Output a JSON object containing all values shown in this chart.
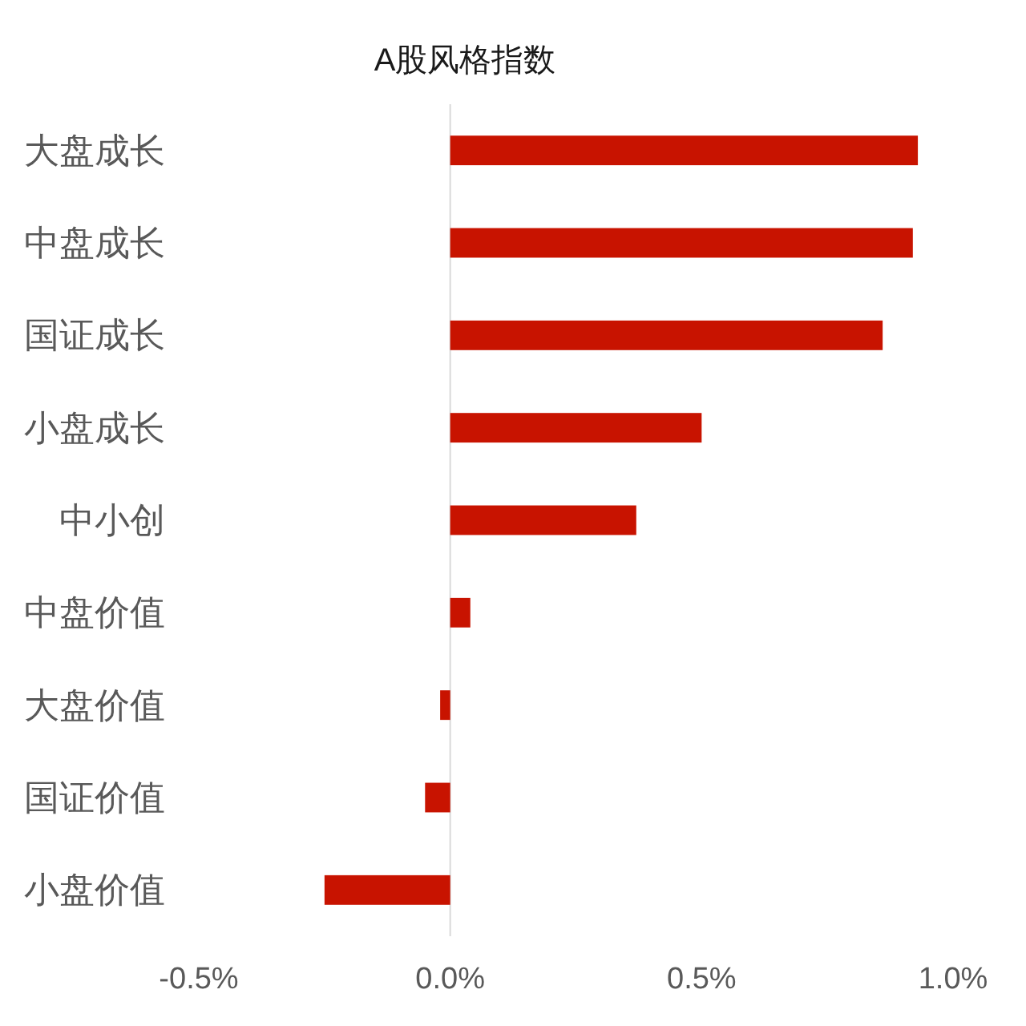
{
  "chart_data": {
    "type": "bar",
    "orientation": "horizontal",
    "title": "A股风格指数",
    "categories": [
      "大盘成长",
      "中盘成长",
      "国证成长",
      "小盘成长",
      "中小创",
      "中盘价值",
      "大盘价值",
      "国证价值",
      "小盘价值"
    ],
    "values": [
      0.93,
      0.92,
      0.86,
      0.5,
      0.37,
      0.04,
      -0.02,
      -0.05,
      -0.25
    ],
    "color": "#c81300",
    "xlim": [
      -0.5,
      1.0
    ],
    "xticks": [
      {
        "value": -0.5,
        "label": "-0.5%"
      },
      {
        "value": 0,
        "label": "0.0%"
      },
      {
        "value": 0.5,
        "label": "0.5%"
      },
      {
        "value": 1.0,
        "label": "1.0%"
      }
    ]
  }
}
